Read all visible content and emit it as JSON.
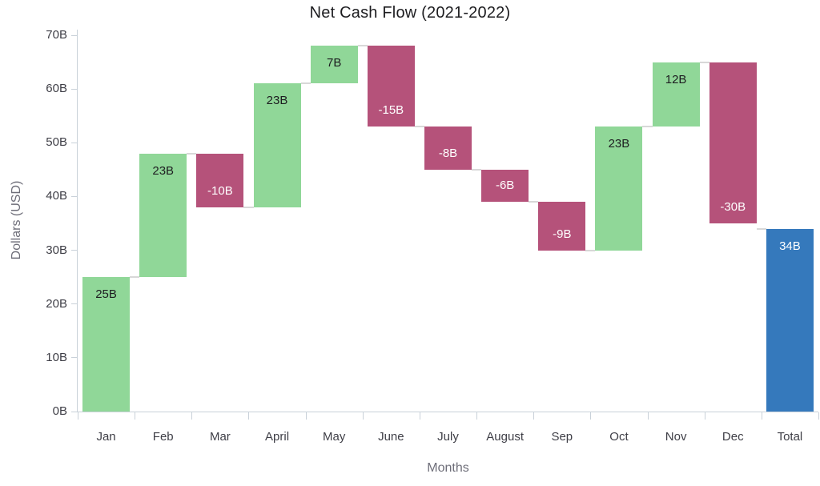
{
  "chart": {
    "title": "Net Cash Flow (2021-2022)",
    "x_axis_title": "Months",
    "y_axis_title": "Dollars (USD)"
  },
  "chart_data": {
    "type": "waterfall",
    "title": "Net Cash Flow (2021-2022)",
    "xlabel": "Months",
    "ylabel": "Dollars (USD)",
    "categories": [
      "Jan",
      "Feb",
      "Mar",
      "April",
      "May",
      "June",
      "July",
      "August",
      "Sep",
      "Oct",
      "Nov",
      "Dec",
      "Total"
    ],
    "points": [
      {
        "category": "Jan",
        "value": 25,
        "label": "25B",
        "kind": "positive"
      },
      {
        "category": "Feb",
        "value": 23,
        "label": "23B",
        "kind": "positive"
      },
      {
        "category": "Mar",
        "value": -10,
        "label": "-10B",
        "kind": "negative"
      },
      {
        "category": "April",
        "value": 23,
        "label": "23B",
        "kind": "positive"
      },
      {
        "category": "May",
        "value": 7,
        "label": "7B",
        "kind": "positive"
      },
      {
        "category": "June",
        "value": -15,
        "label": "-15B",
        "kind": "negative"
      },
      {
        "category": "July",
        "value": -8,
        "label": "-8B",
        "kind": "negative"
      },
      {
        "category": "August",
        "value": -6,
        "label": "-6B",
        "kind": "negative"
      },
      {
        "category": "Sep",
        "value": -9,
        "label": "-9B",
        "kind": "negative"
      },
      {
        "category": "Oct",
        "value": 23,
        "label": "23B",
        "kind": "positive"
      },
      {
        "category": "Nov",
        "value": 12,
        "label": "12B",
        "kind": "positive"
      },
      {
        "category": "Dec",
        "value": -30,
        "label": "-30B",
        "kind": "negative"
      },
      {
        "category": "Total",
        "value": 34,
        "label": "34B",
        "kind": "total"
      }
    ],
    "ylim": [
      0,
      70
    ],
    "ytick_interval": 10,
    "ytick_labels": [
      "0B",
      "10B",
      "20B",
      "30B",
      "40B",
      "50B",
      "60B",
      "70B"
    ],
    "grid": "off",
    "legend": "none",
    "colors": {
      "positive": "#90d798",
      "negative": "#b5527a",
      "total": "#3579bc",
      "connector": "#d8d8d8",
      "axis": "#c9d1d9",
      "positive_label_text": "#1d1d20",
      "negative_label_text": "#ffffff",
      "tick_label_text": "#3e3e46",
      "axis_title_text": "#6e6e79"
    }
  }
}
